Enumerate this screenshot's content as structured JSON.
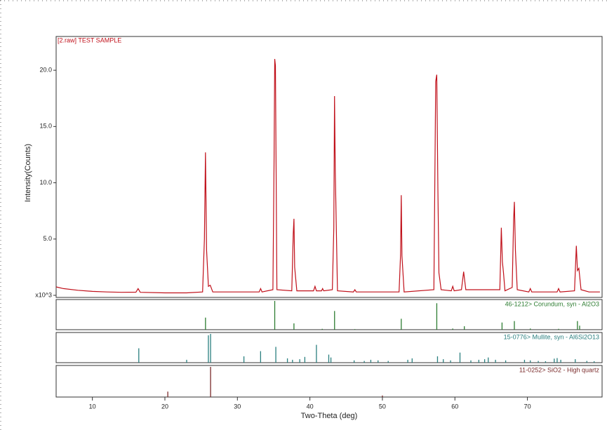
{
  "chart_data": [
    {
      "type": "line",
      "title": "[2.raw] TEST SAMPLE",
      "y_label": "Intensity(Counts)",
      "color": "#c0101a",
      "xlim": [
        5,
        80.3
      ],
      "ylim": [
        0,
        23
      ],
      "yticks": [
        {
          "value": 0,
          "label": "x10^3"
        },
        {
          "value": 5,
          "label": "5.0"
        },
        {
          "value": 10,
          "label": "10.0"
        },
        {
          "value": 15,
          "label": "15.0"
        },
        {
          "value": 20,
          "label": "20.0"
        }
      ],
      "x": [
        5,
        6,
        8,
        10,
        12,
        14,
        16,
        16.3,
        16.6,
        20,
        23,
        25.2,
        25.45,
        25.6,
        25.75,
        26.0,
        26.25,
        26.6,
        30,
        33,
        33.2,
        33.4,
        34.9,
        35.05,
        35.15,
        35.25,
        35.45,
        37.5,
        37.7,
        37.8,
        37.9,
        38.2,
        40.5,
        40.7,
        40.9,
        41.6,
        41.75,
        41.9,
        43.1,
        43.3,
        43.4,
        43.5,
        43.8,
        46,
        46.2,
        46.4,
        52.3,
        52.5,
        52.6,
        52.7,
        53.0,
        57.1,
        57.35,
        57.5,
        57.65,
        57.8,
        58.1,
        59.5,
        59.7,
        59.9,
        60.9,
        61.2,
        61.5,
        66.2,
        66.4,
        66.55,
        66.7,
        66.9,
        67.9,
        68.1,
        68.2,
        68.35,
        68.6,
        70.2,
        70.4,
        70.6,
        74.1,
        74.3,
        74.5,
        76.5,
        76.75,
        76.9,
        77.1,
        77.4,
        78.5,
        80
      ],
      "values": [
        0.75,
        0.6,
        0.45,
        0.35,
        0.3,
        0.27,
        0.28,
        0.6,
        0.27,
        0.22,
        0.22,
        0.3,
        5.0,
        12.7,
        4.0,
        0.8,
        0.9,
        0.3,
        0.3,
        0.3,
        0.6,
        0.3,
        0.5,
        11.5,
        21.0,
        20.4,
        0.5,
        0.4,
        5.5,
        6.8,
        2.5,
        0.4,
        0.4,
        0.8,
        0.4,
        0.4,
        0.6,
        0.4,
        0.5,
        6.0,
        17.7,
        11.0,
        0.4,
        0.3,
        0.5,
        0.3,
        0.3,
        3.6,
        8.9,
        3.5,
        0.3,
        0.5,
        19.0,
        19.6,
        9.5,
        2.0,
        0.5,
        0.4,
        0.8,
        0.4,
        0.5,
        2.1,
        0.5,
        0.5,
        6.0,
        3.0,
        2.0,
        0.4,
        0.7,
        6.7,
        8.3,
        4.0,
        0.5,
        0.3,
        0.6,
        0.3,
        0.3,
        0.6,
        0.3,
        0.4,
        4.4,
        2.2,
        2.4,
        0.5,
        0.3,
        0.3
      ]
    },
    {
      "type": "stick",
      "name": "46-1212> Corundum, syn - Al2O3",
      "color": "#2e7d32",
      "xlim": [
        5,
        80.3
      ],
      "ylim": [
        0,
        100
      ],
      "x": [
        25.6,
        35.15,
        37.8,
        41.7,
        43.4,
        46.2,
        52.6,
        57.5,
        59.7,
        61.3,
        66.5,
        68.2,
        70.4,
        74.3,
        76.9,
        77.2
      ],
      "values": [
        42,
        100,
        22,
        3,
        65,
        2,
        38,
        92,
        4,
        12,
        25,
        30,
        4,
        3,
        30,
        14
      ]
    },
    {
      "type": "stick",
      "name": "15-0776> Mullite, syn - Al6Si2O13",
      "color": "#2a7f7f",
      "xlim": [
        5,
        80.3
      ],
      "ylim": [
        0,
        100
      ],
      "x": [
        16.4,
        23.0,
        26.0,
        26.3,
        30.9,
        33.2,
        35.3,
        36.9,
        37.6,
        38.6,
        39.3,
        40.9,
        42.6,
        42.9,
        46.1,
        47.5,
        48.4,
        49.4,
        50.8,
        53.5,
        54.1,
        57.6,
        58.4,
        59.4,
        60.7,
        62.2,
        63.3,
        64.1,
        64.6,
        65.6,
        67.0,
        69.6,
        70.4,
        71.5,
        72.5,
        73.7,
        74.1,
        74.6,
        76.6,
        78.2,
        79.2
      ],
      "values": [
        50,
        10,
        95,
        100,
        22,
        40,
        55,
        15,
        10,
        12,
        20,
        62,
        28,
        18,
        8,
        6,
        10,
        8,
        6,
        10,
        15,
        22,
        12,
        8,
        35,
        8,
        10,
        12,
        18,
        10,
        8,
        10,
        8,
        6,
        5,
        14,
        16,
        10,
        12,
        6,
        5
      ]
    },
    {
      "type": "stick",
      "name": "11-0252> SiO2 - High quartz",
      "color": "#7a2a2a",
      "xlim": [
        5,
        80.3
      ],
      "ylim": [
        0,
        100
      ],
      "x": [
        20.4,
        26.3,
        50.0
      ],
      "values": [
        18,
        100,
        5
      ],
      "x_label": "Two-Theta (deg)",
      "xticks": [
        10,
        20,
        30,
        40,
        50,
        60,
        70
      ]
    }
  ]
}
